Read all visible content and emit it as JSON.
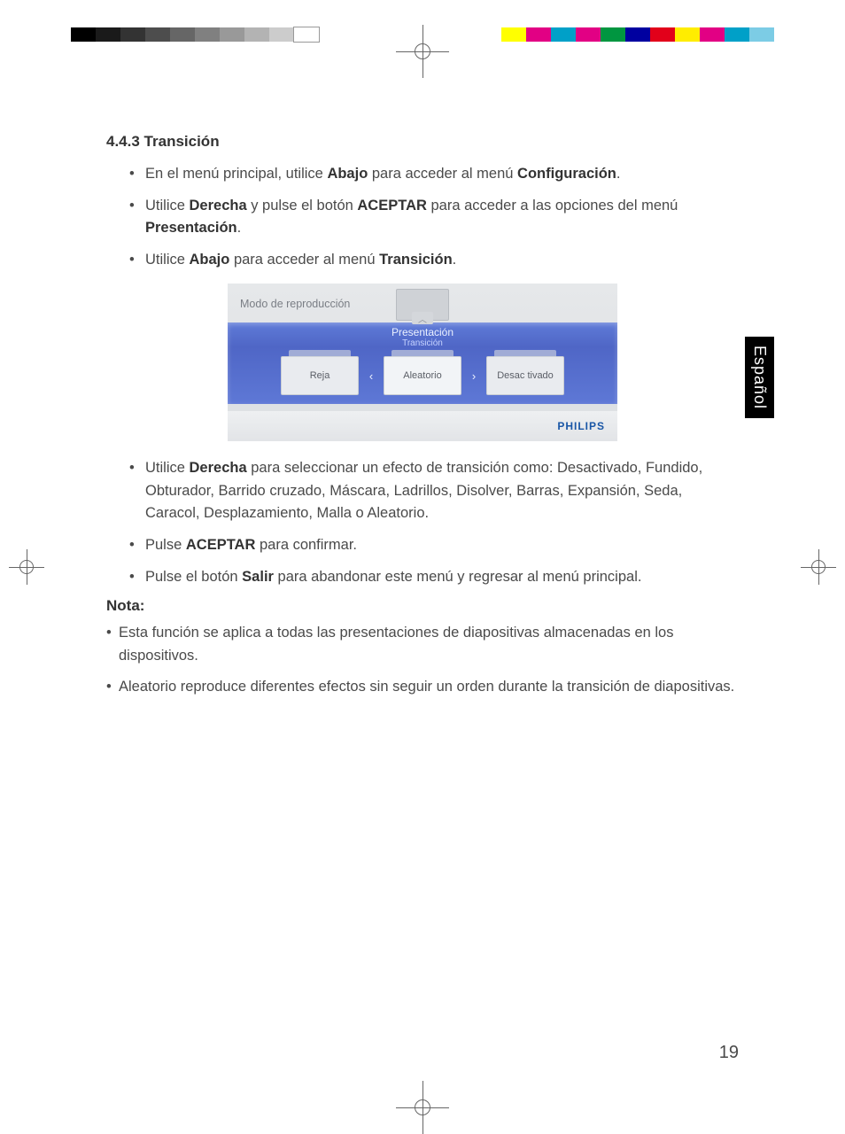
{
  "registration": {
    "gray_swatches": [
      "#000000",
      "#1a1a1a",
      "#333333",
      "#4d4d4d",
      "#666666",
      "#808080",
      "#999999",
      "#b3b3b3",
      "#cccccc",
      "#ffffff"
    ],
    "color_swatches": [
      "#ffff00",
      "#e20084",
      "#00a0c8",
      "#e20084",
      "#009640",
      "#0000a0",
      "#e2001a",
      "#ffed00",
      "#e20084",
      "#00a0c8",
      "#7ccce5"
    ]
  },
  "language_tab": "Español",
  "section_number": "4.4.3",
  "section_title": "Transición",
  "bullets_a": [
    {
      "pre": "En el menú principal, utilice ",
      "b1": "Abajo",
      "mid": " para acceder al menú ",
      "b2": "Configuración",
      "post": "."
    },
    {
      "pre": "Utilice ",
      "b1": "Derecha",
      "mid": " y pulse el botón ",
      "b2": "ACEPTAR",
      "post": " para acceder a las opciones del menú ",
      "b3": "Presentación",
      "tail": "."
    },
    {
      "pre": "Utilice ",
      "b1": "Abajo",
      "mid": " para acceder al menú ",
      "b2": "Transición",
      "post": "."
    }
  ],
  "ui": {
    "title": "Modo de reproducción",
    "sub1": "Presentación",
    "sub2": "Transición",
    "options": [
      "Reja",
      "Aleatorio",
      "Desac tivado"
    ],
    "selected_index": 1,
    "brand": "PHILIPS",
    "stripe_gradient": [
      "#5f7bd8",
      "#4f66c6"
    ],
    "bg_gradient": [
      "#e6e8ea",
      "#dcdfe2"
    ],
    "brand_color": "#1956a6"
  },
  "bullets_b": [
    {
      "pre": "Utilice ",
      "b1": "Derecha",
      "post": " para seleccionar un efecto de transición como: Desactivado, Fundido, Obturador, Barrido cruzado, Máscara, Ladrillos, Disolver, Barras, Expansión, Seda, Caracol, Desplazamiento, Malla o Aleatorio."
    },
    {
      "pre": "Pulse ",
      "b1": "ACEPTAR",
      "post": " para confirmar."
    },
    {
      "pre": "Pulse el botón ",
      "b1": "Salir",
      "post": " para abandonar este menú y regresar al menú principal."
    }
  ],
  "nota_heading": "Nota:",
  "nota_items": [
    "Esta función se aplica a todas las presentaciones de diapositivas almacenadas en los dispositivos.",
    "Aleatorio reproduce diferentes efectos sin seguir un orden durante la transición de diapositivas."
  ],
  "page_number": "19"
}
